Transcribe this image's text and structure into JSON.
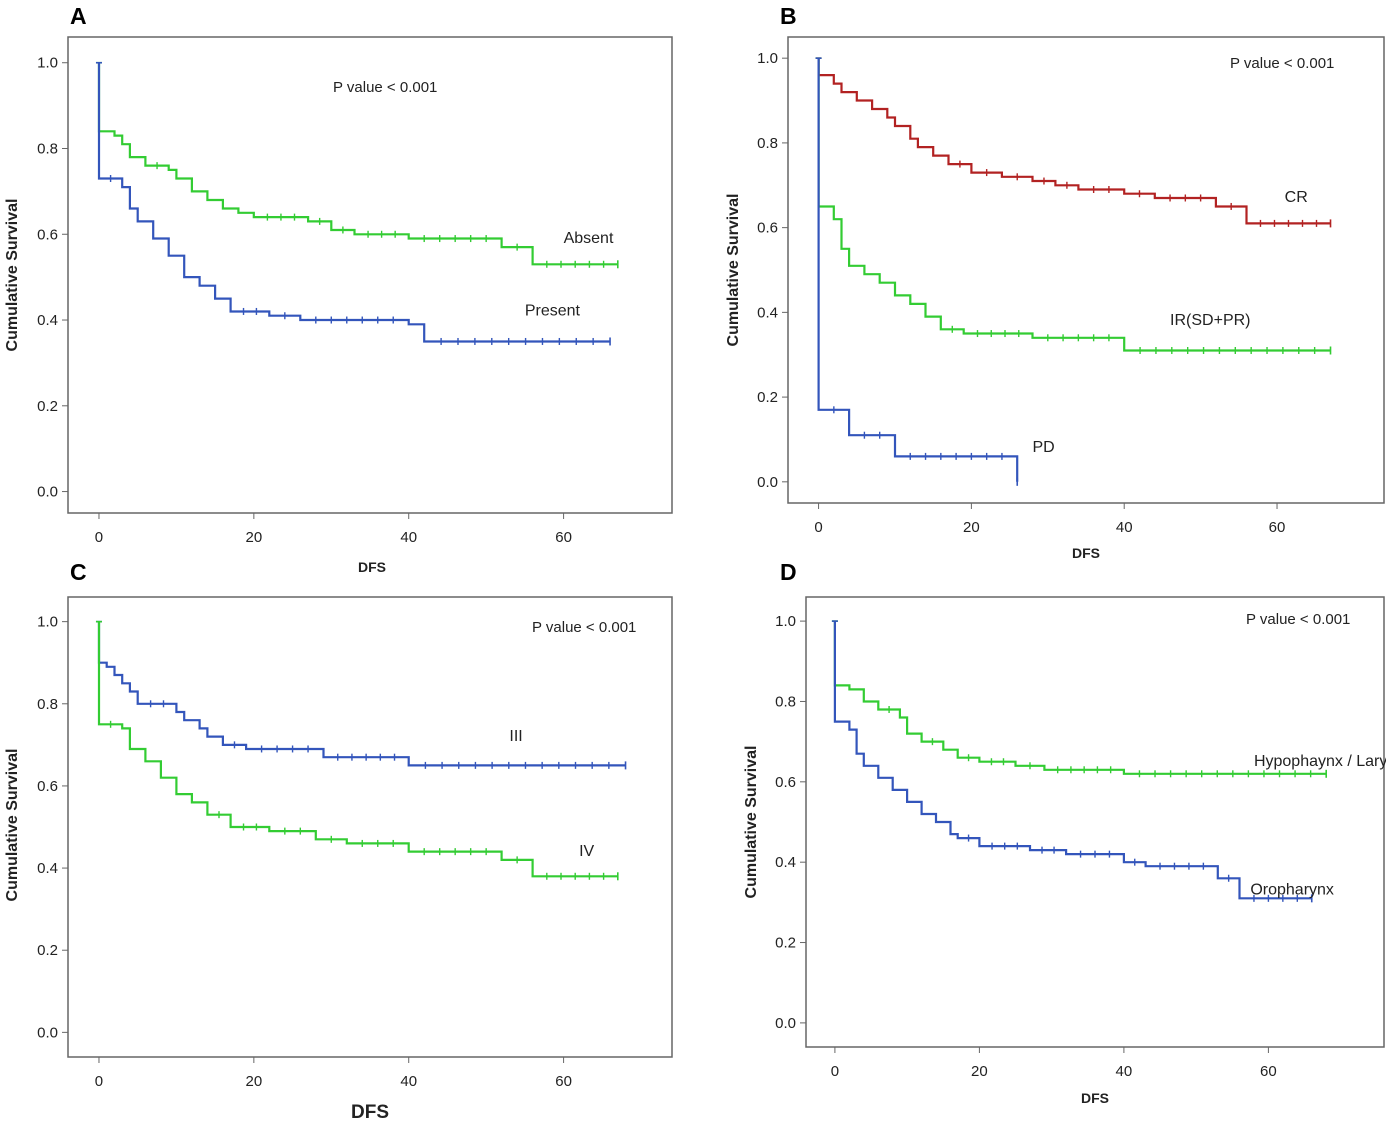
{
  "figure_labels": [
    "A",
    "B",
    "C",
    "D"
  ],
  "colors": {
    "green": "#33cc33",
    "blue": "#3355bb",
    "red": "#b22222",
    "frame": "#666666",
    "text": "#222222"
  },
  "chart_data": [
    {
      "panel": "A",
      "type": "line",
      "step": true,
      "title": "",
      "xlabel": "DFS",
      "ylabel": "Cumulative Survival",
      "annotation": "P value < 0.001",
      "xlim": [
        -4,
        74
      ],
      "ylim": [
        -0.05,
        1.06
      ],
      "xticks": [
        "0",
        "20",
        "40",
        "60"
      ],
      "xtick_values": [
        0,
        20,
        40,
        60
      ],
      "yticks": [
        "0.0",
        "0.2",
        "0.4",
        "0.6",
        "0.8",
        "1.0"
      ],
      "ytick_values": [
        0,
        0.2,
        0.4,
        0.6,
        0.8,
        1.0
      ],
      "series": [
        {
          "name": "Absent",
          "color": "green",
          "x": [
            0,
            0,
            2,
            3,
            4,
            6,
            9,
            10,
            12,
            14,
            16,
            18,
            20,
            27,
            30,
            33,
            40,
            52,
            56,
            67
          ],
          "y": [
            1.0,
            0.84,
            0.83,
            0.81,
            0.78,
            0.76,
            0.75,
            0.73,
            0.7,
            0.68,
            0.66,
            0.65,
            0.64,
            0.63,
            0.61,
            0.6,
            0.59,
            0.57,
            0.53,
            0.53
          ],
          "label_at": [
            60,
            0.58
          ]
        },
        {
          "name": "Present",
          "color": "blue",
          "x": [
            0,
            0,
            3,
            4,
            5,
            7,
            9,
            11,
            13,
            15,
            17,
            22,
            26,
            40,
            42,
            66
          ],
          "y": [
            1.0,
            0.73,
            0.71,
            0.66,
            0.63,
            0.59,
            0.55,
            0.5,
            0.48,
            0.45,
            0.42,
            0.41,
            0.4,
            0.39,
            0.35,
            0.35
          ],
          "label_at": [
            55,
            0.41
          ]
        }
      ]
    },
    {
      "panel": "B",
      "type": "line",
      "step": true,
      "title": "",
      "xlabel": "DFS",
      "ylabel": "Cumulative Survival",
      "annotation": "P value < 0.001",
      "xlim": [
        -4,
        74
      ],
      "ylim": [
        -0.05,
        1.05
      ],
      "xticks": [
        "0",
        "20",
        "40",
        "60"
      ],
      "xtick_values": [
        0,
        20,
        40,
        60
      ],
      "yticks": [
        "0.0",
        "0.2",
        "0.4",
        "0.6",
        "0.8",
        "1.0"
      ],
      "ytick_values": [
        0,
        0.2,
        0.4,
        0.6,
        0.8,
        1.0
      ],
      "series": [
        {
          "name": "CR",
          "color": "red",
          "x": [
            0,
            0,
            2,
            3,
            5,
            7,
            9,
            10,
            12,
            13,
            15,
            17,
            20,
            24,
            28,
            31,
            34,
            40,
            44,
            52,
            56,
            67
          ],
          "y": [
            1.0,
            0.96,
            0.94,
            0.92,
            0.9,
            0.88,
            0.86,
            0.84,
            0.81,
            0.79,
            0.77,
            0.75,
            0.73,
            0.72,
            0.71,
            0.7,
            0.69,
            0.68,
            0.67,
            0.65,
            0.61,
            0.61
          ],
          "label_at": [
            61,
            0.66
          ]
        },
        {
          "name": "IR(SD+PR)",
          "color": "green",
          "x": [
            0,
            0,
            2,
            3,
            4,
            6,
            8,
            10,
            12,
            14,
            16,
            19,
            28,
            40,
            67
          ],
          "y": [
            1.0,
            0.65,
            0.62,
            0.55,
            0.51,
            0.49,
            0.47,
            0.44,
            0.42,
            0.39,
            0.36,
            0.35,
            0.34,
            0.31,
            0.31
          ],
          "label_at": [
            46,
            0.37
          ]
        },
        {
          "name": "PD",
          "color": "blue",
          "x": [
            0,
            0,
            4,
            10,
            26,
            26
          ],
          "y": [
            1.0,
            0.17,
            0.11,
            0.06,
            0.06,
            0.0
          ],
          "label_at": [
            28,
            0.07
          ]
        }
      ]
    },
    {
      "panel": "C",
      "type": "line",
      "step": true,
      "title": "",
      "xlabel": "DFS",
      "ylabel": "Cumulative Survival",
      "annotation": "P value < 0.001",
      "xlim": [
        -4,
        74
      ],
      "ylim": [
        -0.06,
        1.06
      ],
      "xticks": [
        "0",
        "20",
        "40",
        "60"
      ],
      "xtick_values": [
        0,
        20,
        40,
        60
      ],
      "yticks": [
        "0.0",
        "0.2",
        "0.4",
        "0.6",
        "0.8",
        "1.0"
      ],
      "ytick_values": [
        0,
        0.2,
        0.4,
        0.6,
        0.8,
        1.0
      ],
      "series": [
        {
          "name": "III",
          "color": "blue",
          "x": [
            0,
            0,
            1,
            2,
            3,
            4,
            5,
            10,
            11,
            13,
            14,
            16,
            19,
            29,
            40,
            68
          ],
          "y": [
            1.0,
            0.9,
            0.89,
            0.87,
            0.85,
            0.83,
            0.8,
            0.78,
            0.76,
            0.74,
            0.72,
            0.7,
            0.69,
            0.67,
            0.65,
            0.65
          ],
          "label_at": [
            53,
            0.71
          ]
        },
        {
          "name": "IV",
          "color": "green",
          "x": [
            0,
            0,
            3,
            4,
            6,
            8,
            10,
            12,
            14,
            17,
            22,
            28,
            32,
            40,
            52,
            56,
            67
          ],
          "y": [
            1.0,
            0.75,
            0.74,
            0.69,
            0.66,
            0.62,
            0.58,
            0.56,
            0.53,
            0.5,
            0.49,
            0.47,
            0.46,
            0.44,
            0.42,
            0.38,
            0.38
          ],
          "label_at": [
            62,
            0.43
          ]
        }
      ]
    },
    {
      "panel": "D",
      "type": "line",
      "step": true,
      "title": "",
      "xlabel": "DFS",
      "ylabel": "Cumulative Survival",
      "annotation": "P value < 0.001",
      "xlim": [
        -4,
        76
      ],
      "ylim": [
        -0.06,
        1.06
      ],
      "xticks": [
        "0",
        "20",
        "40",
        "60"
      ],
      "xtick_values": [
        0,
        20,
        40,
        60
      ],
      "yticks": [
        "0.0",
        "0.2",
        "0.4",
        "0.6",
        "0.8",
        "1.0"
      ],
      "ytick_values": [
        0,
        0.2,
        0.4,
        0.6,
        0.8,
        1.0
      ],
      "series": [
        {
          "name": "Hypophaynx / Larynx",
          "color": "green",
          "x": [
            0,
            0,
            2,
            4,
            6,
            9,
            10,
            12,
            15,
            17,
            20,
            25,
            29,
            40,
            68
          ],
          "y": [
            1.0,
            0.84,
            0.83,
            0.8,
            0.78,
            0.76,
            0.72,
            0.7,
            0.68,
            0.66,
            0.65,
            0.64,
            0.63,
            0.62,
            0.62
          ],
          "label_at": [
            58,
            0.64
          ]
        },
        {
          "name": "Oropharynx",
          "color": "blue",
          "x": [
            0,
            0,
            2,
            3,
            4,
            6,
            8,
            10,
            12,
            14,
            16,
            17,
            20,
            27,
            32,
            40,
            43,
            53,
            56,
            66
          ],
          "y": [
            1.0,
            0.75,
            0.73,
            0.67,
            0.64,
            0.61,
            0.58,
            0.55,
            0.52,
            0.5,
            0.47,
            0.46,
            0.44,
            0.43,
            0.42,
            0.4,
            0.39,
            0.36,
            0.31,
            0.31
          ],
          "label_at": [
            57.5,
            0.32
          ]
        }
      ]
    }
  ]
}
